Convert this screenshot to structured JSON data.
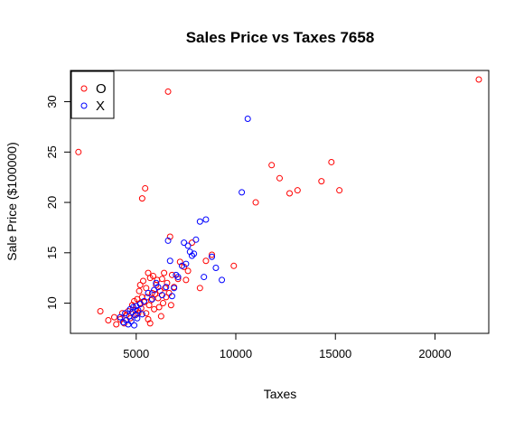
{
  "chart_data": {
    "type": "scatter",
    "title": "Sales Price vs Taxes 7658",
    "xlabel": "Taxes",
    "ylabel": "Sale Price ($100000)",
    "xlim": [
      1700,
      22700
    ],
    "ylim": [
      7.0,
      33.1
    ],
    "xticks": [
      5000,
      10000,
      15000,
      20000
    ],
    "xtick_labels": [
      "5000",
      "10000",
      "15000",
      "20000"
    ],
    "yticks": [
      10,
      15,
      20,
      25,
      30
    ],
    "ytick_labels": [
      "10",
      "15",
      "20",
      "25",
      "30"
    ],
    "grid": false,
    "legend_position": "top-left",
    "series": [
      {
        "name": "O",
        "color": "#ff0000",
        "marker": "open-circle",
        "points": [
          [
            2100,
            25.0
          ],
          [
            3200,
            9.2
          ],
          [
            3600,
            8.3
          ],
          [
            3900,
            8.6
          ],
          [
            4000,
            7.9
          ],
          [
            4200,
            8.4
          ],
          [
            4300,
            9.0
          ],
          [
            4400,
            8.0
          ],
          [
            4500,
            8.8
          ],
          [
            4600,
            9.2
          ],
          [
            4700,
            8.5
          ],
          [
            4800,
            9.8
          ],
          [
            4900,
            10.2
          ],
          [
            4950,
            9.3
          ],
          [
            5000,
            8.9
          ],
          [
            5050,
            10.4
          ],
          [
            5100,
            9.0
          ],
          [
            5150,
            11.2
          ],
          [
            5200,
            10.0
          ],
          [
            5200,
            11.8
          ],
          [
            5250,
            9.5
          ],
          [
            5300,
            10.6
          ],
          [
            5300,
            20.4
          ],
          [
            5350,
            12.2
          ],
          [
            5400,
            10.1
          ],
          [
            5450,
            21.4
          ],
          [
            5500,
            9.0
          ],
          [
            5500,
            11.5
          ],
          [
            5550,
            10.6
          ],
          [
            5600,
            8.4
          ],
          [
            5600,
            13.0
          ],
          [
            5650,
            9.8
          ],
          [
            5700,
            12.5
          ],
          [
            5700,
            8.0
          ],
          [
            5750,
            10.3
          ],
          [
            5800,
            11.0
          ],
          [
            5850,
            12.7
          ],
          [
            5900,
            9.4
          ],
          [
            5950,
            10.9
          ],
          [
            6000,
            11.8
          ],
          [
            6050,
            12.3
          ],
          [
            6100,
            10.5
          ],
          [
            6150,
            9.6
          ],
          [
            6200,
            11.2
          ],
          [
            6250,
            8.7
          ],
          [
            6300,
            12.4
          ],
          [
            6350,
            10.0
          ],
          [
            6400,
            13.0
          ],
          [
            6450,
            11.5
          ],
          [
            6500,
            10.6
          ],
          [
            6550,
            12.0
          ],
          [
            6600,
            31.0
          ],
          [
            6650,
            11.0
          ],
          [
            6700,
            16.6
          ],
          [
            6750,
            9.8
          ],
          [
            6800,
            12.8
          ],
          [
            6900,
            11.6
          ],
          [
            7100,
            12.4
          ],
          [
            7200,
            14.1
          ],
          [
            7400,
            13.6
          ],
          [
            7500,
            12.3
          ],
          [
            7600,
            13.2
          ],
          [
            7800,
            16.0
          ],
          [
            8200,
            11.5
          ],
          [
            8500,
            14.2
          ],
          [
            8800,
            14.8
          ],
          [
            9900,
            13.7
          ],
          [
            11000,
            20.0
          ],
          [
            11800,
            23.7
          ],
          [
            12200,
            22.4
          ],
          [
            12700,
            20.9
          ],
          [
            13100,
            21.2
          ],
          [
            14300,
            22.1
          ],
          [
            14800,
            24.0
          ],
          [
            15200,
            21.2
          ],
          [
            22200,
            32.2
          ]
        ]
      },
      {
        "name": "X",
        "color": "#0000ff",
        "marker": "open-circle",
        "points": [
          [
            4200,
            8.6
          ],
          [
            4350,
            8.1
          ],
          [
            4450,
            9.0
          ],
          [
            4500,
            8.3
          ],
          [
            4600,
            7.9
          ],
          [
            4650,
            8.7
          ],
          [
            4700,
            9.4
          ],
          [
            4750,
            8.2
          ],
          [
            4800,
            9.1
          ],
          [
            4850,
            9.6
          ],
          [
            4900,
            7.8
          ],
          [
            4950,
            8.8
          ],
          [
            5000,
            9.7
          ],
          [
            5050,
            8.5
          ],
          [
            5100,
            9.3
          ],
          [
            5200,
            9.9
          ],
          [
            5300,
            8.9
          ],
          [
            5400,
            10.2
          ],
          [
            5600,
            11.0
          ],
          [
            5800,
            10.4
          ],
          [
            5900,
            11.3
          ],
          [
            6000,
            12.0
          ],
          [
            6100,
            11.6
          ],
          [
            6300,
            10.8
          ],
          [
            6500,
            11.6
          ],
          [
            6600,
            16.2
          ],
          [
            6700,
            14.2
          ],
          [
            6800,
            10.7
          ],
          [
            6900,
            11.5
          ],
          [
            7000,
            12.8
          ],
          [
            7100,
            12.6
          ],
          [
            7300,
            13.7
          ],
          [
            7400,
            16.0
          ],
          [
            7500,
            13.9
          ],
          [
            7600,
            15.7
          ],
          [
            7700,
            15.1
          ],
          [
            7800,
            14.7
          ],
          [
            7900,
            14.9
          ],
          [
            8000,
            16.3
          ],
          [
            8200,
            18.1
          ],
          [
            8400,
            12.6
          ],
          [
            8500,
            18.3
          ],
          [
            8800,
            14.6
          ],
          [
            9000,
            13.5
          ],
          [
            9300,
            12.3
          ],
          [
            10300,
            21.0
          ],
          [
            10600,
            28.3
          ]
        ]
      }
    ]
  }
}
